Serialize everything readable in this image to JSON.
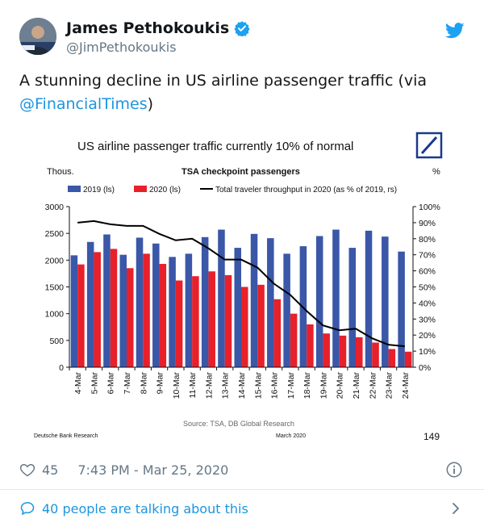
{
  "tweet": {
    "display_name": "James Pethokoukis",
    "handle": "@JimPethokoukis",
    "text_prefix": "A stunning decline in US airline passenger traffic (via ",
    "mention": "@FinancialTimes",
    "text_suffix": ")",
    "likes": "45",
    "timestamp": "7:43 PM - Mar 25, 2020",
    "talking": "40 people are talking about this",
    "colors": {
      "link": "#1b95e0",
      "muted": "#657786",
      "verified": "#1da1f2"
    }
  },
  "chart_header": {
    "title": "US airline passenger traffic currently 10% of normal",
    "subtitle": "TSA checkpoint passengers",
    "left_unit": "Thous.",
    "right_unit": "%",
    "source": "Source:  TSA, DB Global Research",
    "footer_left": "Deutsche Bank Research",
    "footer_center": "March  2020",
    "page_number": "149"
  },
  "chart_data": {
    "type": "bar",
    "title": "US airline passenger traffic currently 10% of normal",
    "categories": [
      "4-Mar",
      "5-Mar",
      "6-Mar",
      "7-Mar",
      "8-Mar",
      "9-Mar",
      "10-Mar",
      "11-Mar",
      "12-Mar",
      "13-Mar",
      "14-Mar",
      "15-Mar",
      "16-Mar",
      "17-Mar",
      "18-Mar",
      "19-Mar",
      "20-Mar",
      "21-Mar",
      "22-Mar",
      "23-Mar",
      "24-Mar"
    ],
    "series": [
      {
        "name": "2019 (ls)",
        "type": "bar",
        "axis": "left",
        "color": "#3a57a8",
        "values": [
          2090,
          2340,
          2480,
          2100,
          2420,
          2310,
          2060,
          2120,
          2430,
          2570,
          2230,
          2490,
          2410,
          2120,
          2260,
          2450,
          2570,
          2230,
          2550,
          2440,
          2160
        ]
      },
      {
        "name": "2020 (ls)",
        "type": "bar",
        "axis": "left",
        "color": "#e8202a",
        "values": [
          1920,
          2150,
          2210,
          1850,
          2120,
          1930,
          1620,
          1700,
          1790,
          1720,
          1500,
          1540,
          1270,
          1000,
          800,
          630,
          590,
          560,
          460,
          340,
          290
        ]
      },
      {
        "name": "Total traveler throughput in 2020 (as % of 2019, rs)",
        "type": "line",
        "axis": "right",
        "color": "#000000",
        "values": [
          90,
          91,
          89,
          88,
          88,
          83,
          79,
          80,
          74,
          67,
          67,
          62,
          52,
          45,
          35,
          26,
          23,
          24,
          18,
          14,
          13
        ]
      }
    ],
    "y_left": {
      "min": 0,
      "max": 3000,
      "step": 500
    },
    "y_right": {
      "min": 0,
      "max": 100,
      "step": 10,
      "suffix": "%"
    },
    "legend": "top",
    "grid": false
  }
}
